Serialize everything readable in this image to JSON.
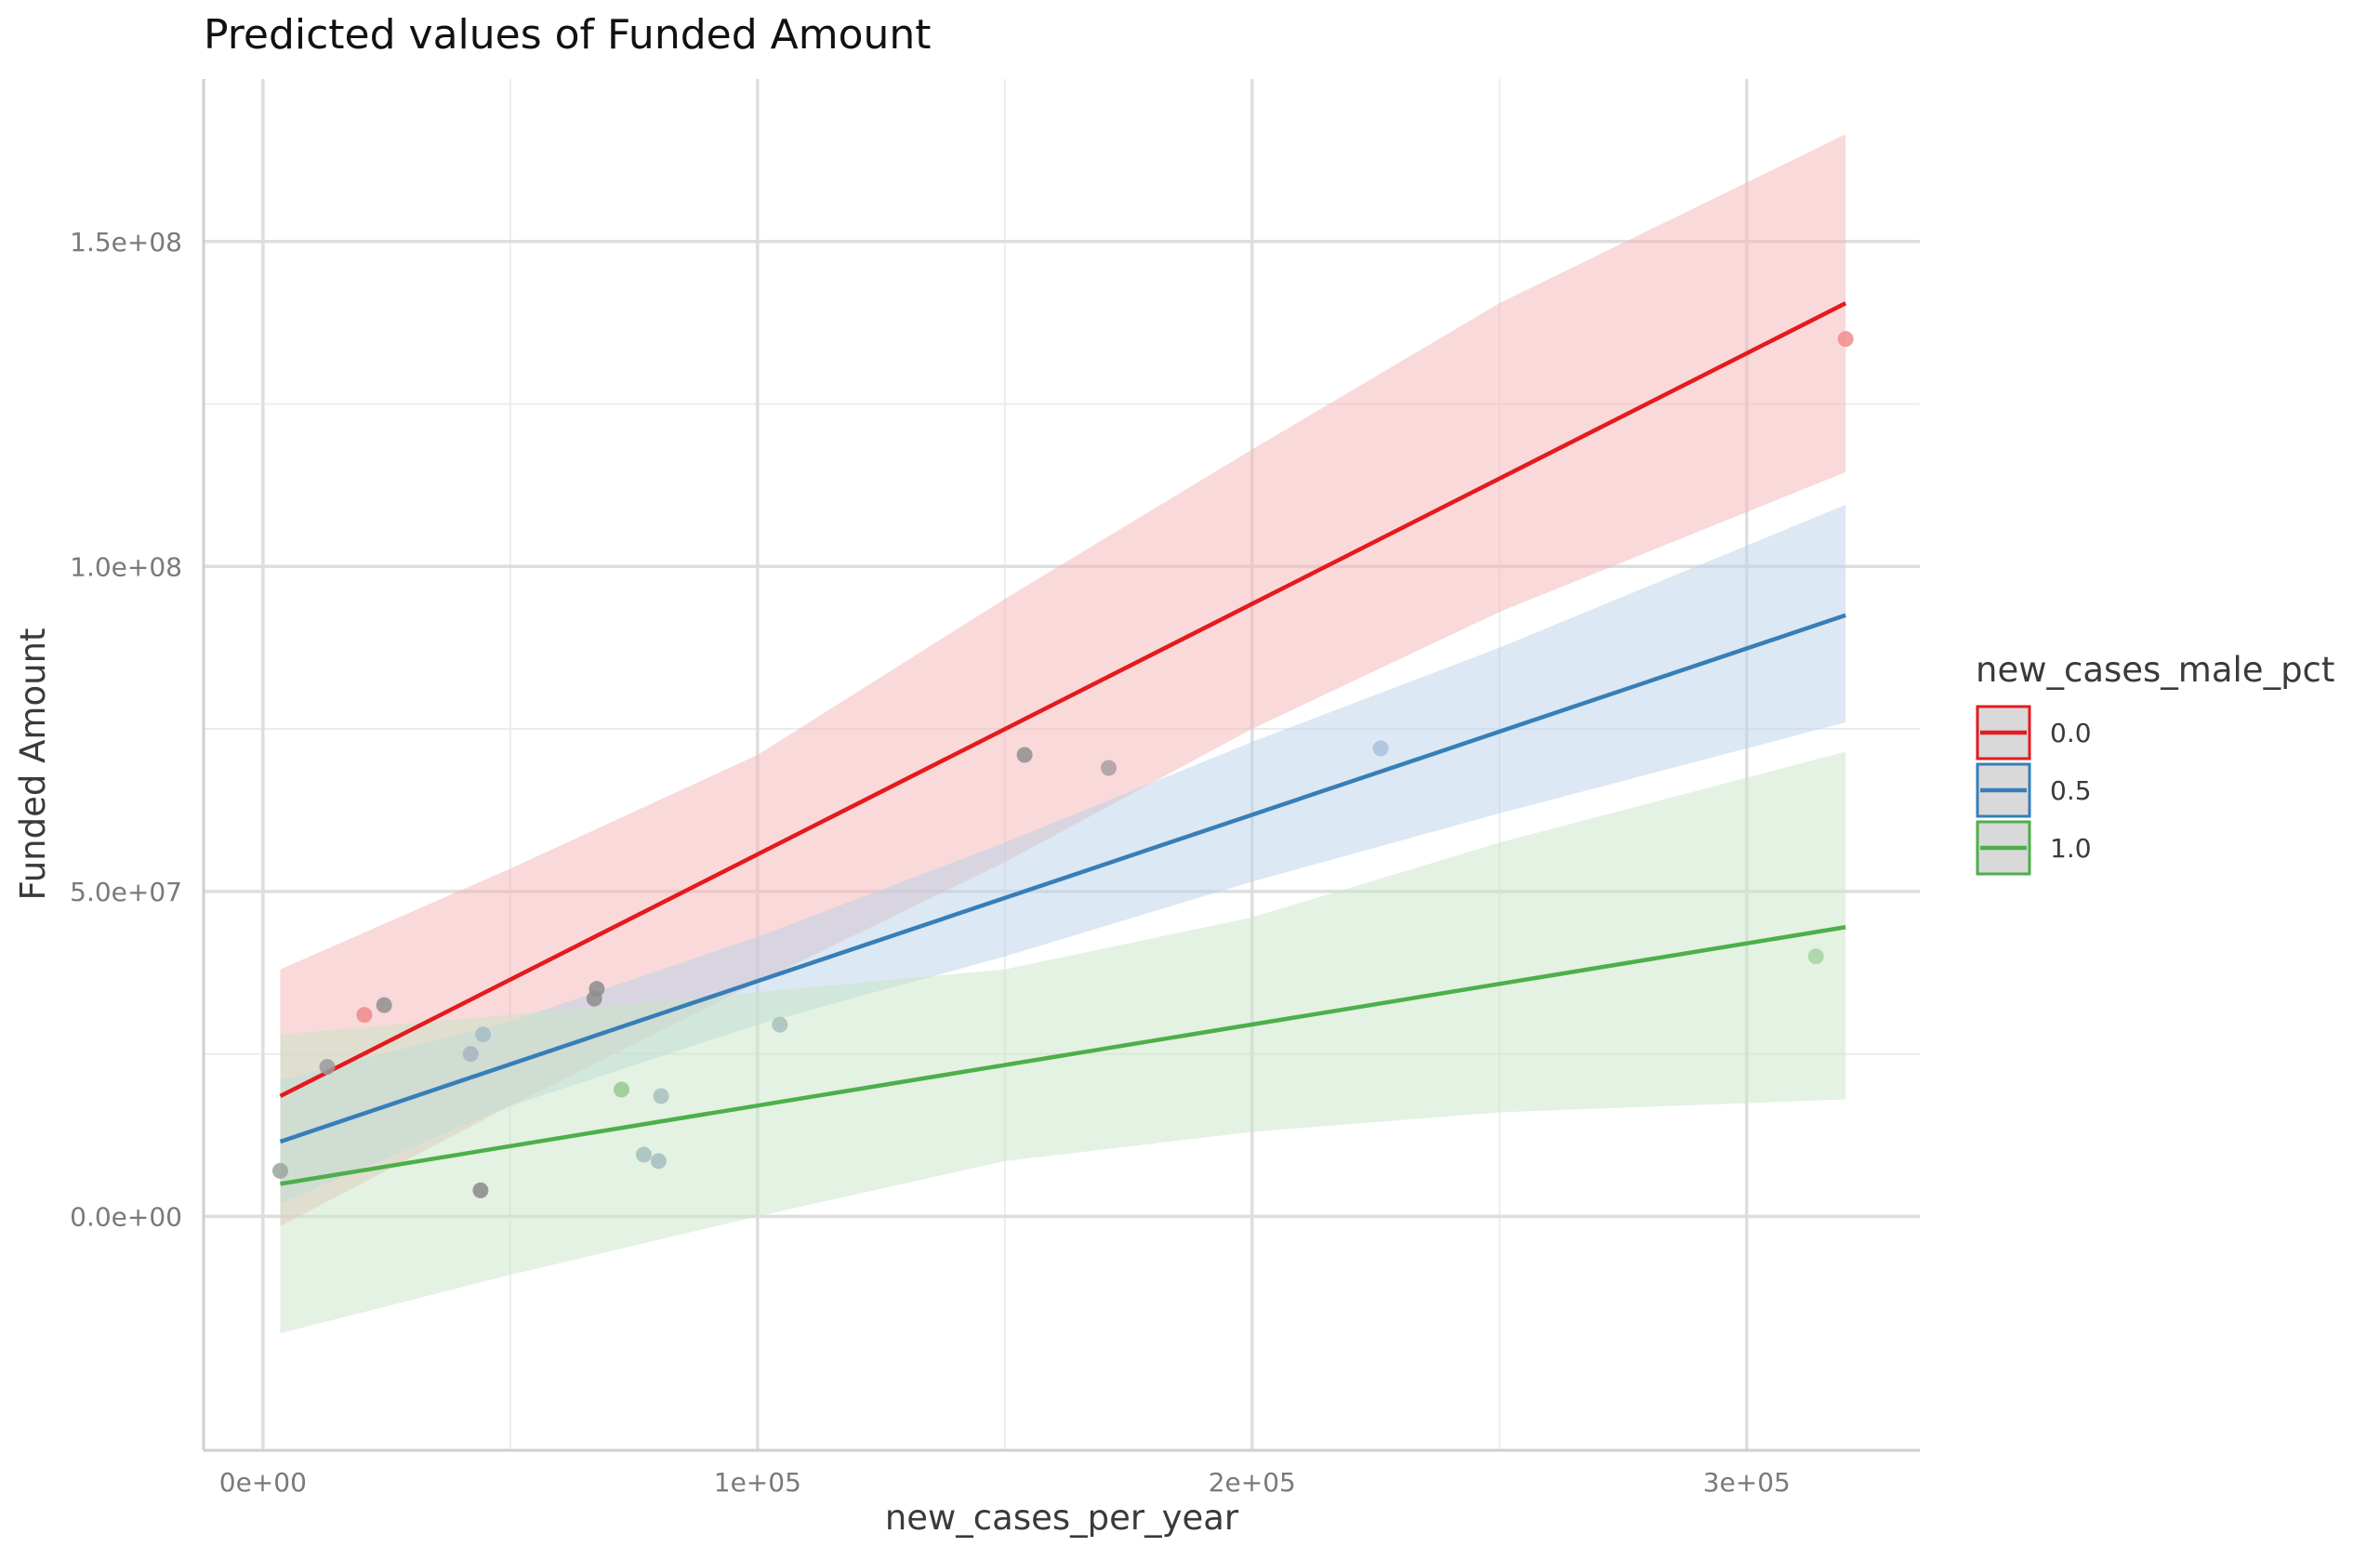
{
  "chart_data": {
    "type": "line",
    "title": "Predicted values of Funded Amount",
    "xlabel": "new_cases_per_year",
    "ylabel": "Funded Amount",
    "xlim": [
      -12000,
      335000
    ],
    "ylim": [
      -36000000,
      175000000
    ],
    "x_ticks": [
      {
        "value": 0,
        "label": "0e+00"
      },
      {
        "value": 100000,
        "label": "1e+05"
      },
      {
        "value": 200000,
        "label": "2e+05"
      },
      {
        "value": 300000,
        "label": "3e+05"
      }
    ],
    "x_minor": [
      50000,
      150000,
      250000
    ],
    "y_ticks": [
      {
        "value": 0,
        "label": "0.0e+00"
      },
      {
        "value": 50000000,
        "label": "5.0e+07"
      },
      {
        "value": 100000000,
        "label": "1.0e+08"
      },
      {
        "value": 150000000,
        "label": "1.5e+08"
      }
    ],
    "y_minor": [
      25000000,
      75000000,
      125000000
    ],
    "grid": true,
    "legend": {
      "title": "new_cases_male_pct",
      "position": "right"
    },
    "series": [
      {
        "name": "0.0",
        "color": "#E41A1C",
        "fill": "#F3B3B3",
        "line": [
          [
            3500,
            18500000
          ],
          [
            320000,
            140500000
          ]
        ],
        "ribbon": [
          [
            3500,
            -1500000,
            38000000
          ],
          [
            50000,
            17000000,
            53500000
          ],
          [
            100000,
            36000000,
            71000000
          ],
          [
            150000,
            54500000,
            95000000
          ],
          [
            200000,
            75000000,
            118000000
          ],
          [
            250000,
            93000000,
            140500000
          ],
          [
            320000,
            114500000,
            166500000
          ]
        ]
      },
      {
        "name": "0.5",
        "color": "#377EB8",
        "fill": "#B9D2E8",
        "line": [
          [
            3500,
            11500000
          ],
          [
            320000,
            92500000
          ]
        ],
        "ribbon": [
          [
            3500,
            2000000,
            21000000
          ],
          [
            50000,
            17000000,
            30000000
          ],
          [
            100000,
            29500000,
            43000000
          ],
          [
            150000,
            40000000,
            57500000
          ],
          [
            200000,
            51500000,
            73000000
          ],
          [
            250000,
            62000000,
            87500000
          ],
          [
            320000,
            76000000,
            109500000
          ]
        ]
      },
      {
        "name": "1.0",
        "color": "#4DAF4A",
        "fill": "#C7E6C5",
        "line": [
          [
            3500,
            5000000
          ],
          [
            320000,
            44500000
          ]
        ],
        "ribbon": [
          [
            3500,
            -18000000,
            28000000
          ],
          [
            50000,
            -9000000,
            31000000
          ],
          [
            100000,
            0,
            34500000
          ],
          [
            150000,
            8500000,
            38000000
          ],
          [
            200000,
            13000000,
            46000000
          ],
          [
            250000,
            16000000,
            57500000
          ],
          [
            320000,
            18000000,
            71500000
          ]
        ]
      }
    ],
    "points": [
      {
        "x": 3500,
        "y": 7000000,
        "color": "#9aa59a"
      },
      {
        "x": 13000,
        "y": 23000000,
        "color": "#9a9a9a"
      },
      {
        "x": 20500,
        "y": 31000000,
        "color": "#F08A8A"
      },
      {
        "x": 24500,
        "y": 32500000,
        "color": "#8f8f8f"
      },
      {
        "x": 42000,
        "y": 25000000,
        "color": "#a7b4bf"
      },
      {
        "x": 44000,
        "y": 4000000,
        "color": "#8a8a8a"
      },
      {
        "x": 44500,
        "y": 28000000,
        "color": "#a7bcc5"
      },
      {
        "x": 67000,
        "y": 33500000,
        "color": "#8c8c8c"
      },
      {
        "x": 67500,
        "y": 35000000,
        "color": "#8c8c8c"
      },
      {
        "x": 72500,
        "y": 19500000,
        "color": "#98c98f"
      },
      {
        "x": 77000,
        "y": 9500000,
        "color": "#a3c0bd"
      },
      {
        "x": 80000,
        "y": 8500000,
        "color": "#a3bdbf"
      },
      {
        "x": 80500,
        "y": 18500000,
        "color": "#a6c1bd"
      },
      {
        "x": 104500,
        "y": 29500000,
        "color": "#a6c1bd"
      },
      {
        "x": 154000,
        "y": 71000000,
        "color": "#8f8f8f"
      },
      {
        "x": 171000,
        "y": 69000000,
        "color": "#a99da3"
      },
      {
        "x": 226000,
        "y": 72000000,
        "color": "#a9c0dc"
      },
      {
        "x": 314000,
        "y": 40000000,
        "color": "#a6d3a2"
      },
      {
        "x": 320000,
        "y": 135000000,
        "color": "#F28B8B"
      }
    ]
  }
}
